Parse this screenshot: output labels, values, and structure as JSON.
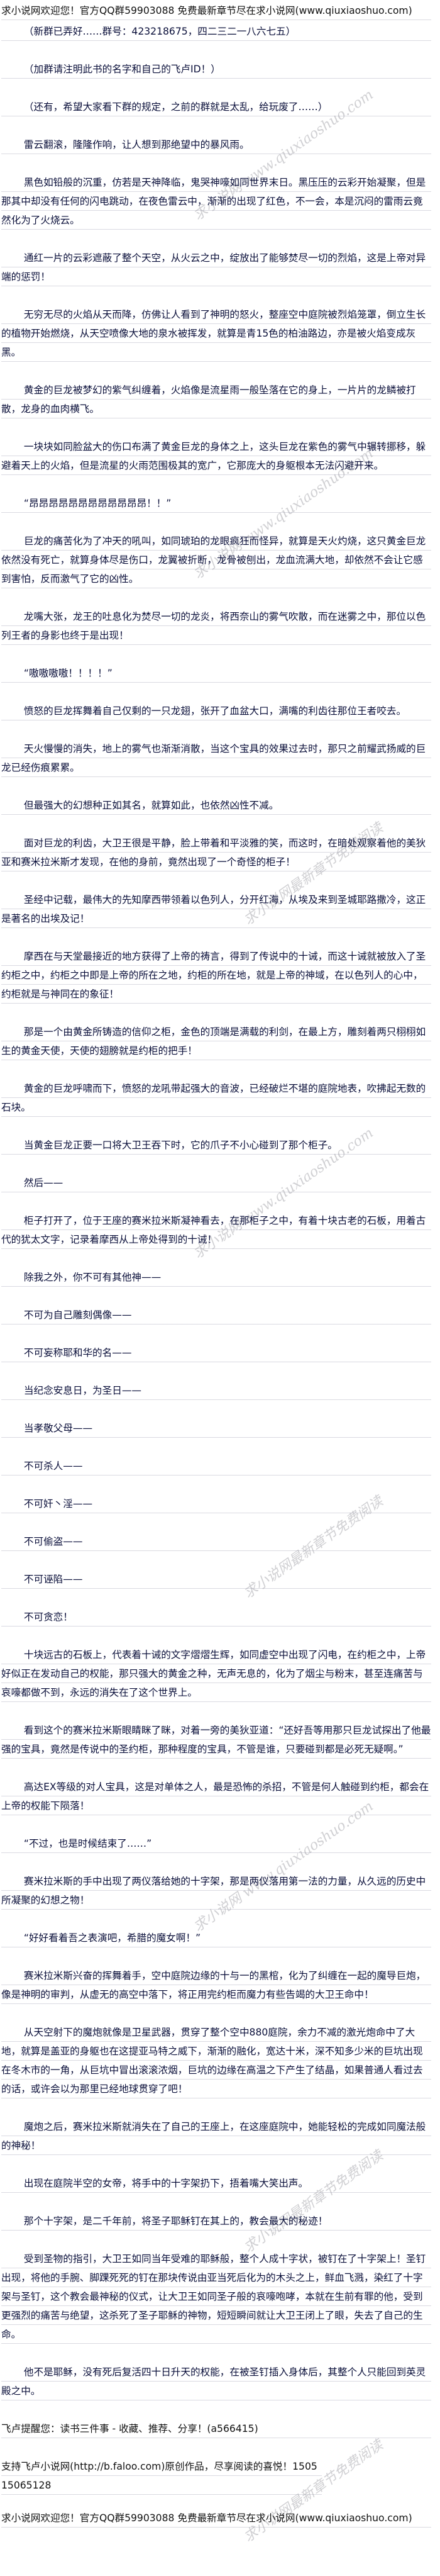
{
  "header": "求小说网欢迎您！官方QQ群59903088 免费最新章节尽在求小说网(www.qiuxiaoshuo.com)",
  "watermarks": {
    "site": "求小说网 www.qiuxiaoshuo.com",
    "slogan": "求小说网最新章节免费阅读"
  },
  "paragraphs": [
    "（新群已弄好……群号：423218675，四二三二一八六七五）",
    "（加群请注明此书的名字和自己的飞卢ID！）",
    "（还有，希望大家看下群的规定，之前的群就是太乱，给玩废了……）",
    "雷云翻滚，隆隆作响，让人想到那绝望中的暴风雨。",
    "黑色如铅般的沉重，仿若是天神降临，鬼哭神嚎如同世界末日。黑压压的云彩开始凝聚，但是那其中却没有任何的闪电跳动，在夜色雷云中，渐渐的出现了红色，不一会，本是沉闷的雷雨云竟然化为了火烧云。",
    "通红一片的云彩遮蔽了整个天空，从火云之中，绽放出了能够焚尽一切的烈焰，这是上帝对异端的惩罚！",
    "无穷无尽的火焰从天而降，仿佛让人看到了神明的怒火，整座空中庭院被烈焰笼罩，倒立生长的植物开始燃烧，从天空喷像大地的泉水被挥发，就算是青15色的柏油路边，亦是被火焰变成灰黑。",
    "黄金的巨龙被梦幻的紫气纠缠着，火焰像是流星雨一般坠落在它的身上，一片片的龙鳞被打散，龙身的血肉横飞。",
    "一块块如同脸盆大的伤口布满了黄金巨龙的身体之上，这头巨龙在紫色的雾气中辗转挪移，躲避着天上的火焰，但是流星的火雨范围极其的宽广，它那庞大的身躯根本无法闪避开来。",
    "“昂昂昂昂昂昂昂昂昂昂昂昂！！”",
    "巨龙的痛苦化为了冲天的吼叫，如同琥珀的龙眼疯狂而怪异，就算是天火灼烧，这只黄金巨龙依然没有死亡，就算身体尽是伤口，龙翼被折断，龙骨被刨出，龙血流满大地，却依然不会让它感到害怕，反而激气了它的凶性。",
    "龙嘴大张，龙王的吐息化为焚尽一切的龙炎，将西奈山的雾气吹散，而在迷雾之中，那位以色列王者的身影也终于是出现！",
    "“嗷嗷嗷嗷！！！！”",
    "愤怒的巨龙挥舞着自己仅剩的一只龙翅，张开了血盆大口，满嘴的利齿往那位王者咬去。",
    "天火慢慢的消失，地上的雾气也渐渐消散，当这个宝具的效果过去时，那只之前耀武扬威的巨龙已经伤痕累累。",
    "但最强大的幻想种正如其名，就算如此，也依然凶性不减。",
    "面对巨龙的利齿，大卫王很是平静，脸上带着和平淡雅的笑，而这时，在暗处观察着他的美狄亚和赛米拉米斯才发现，在他的身前，竟然出现了一个奇怪的柜子！",
    "圣经中记载，最伟大的先知摩西带领着以色列人，分开红海，从埃及来到圣城耶路撒冷，这正是著名的出埃及记！",
    "摩西在与天堂最接近的地方获得了上帝的祷言，得到了传说中的十诫，而这十诫就被放入了圣约柜之中，约柜之中即是上帝的所在之地，约柜的所在地，就是上帝的神域，在以色列人的心中，约柜就是与神同在的象征！",
    "那是一个由黄金所铸造的信仰之柜，金色的顶端是满载的利剑，在最上方，雕刻着两只栩栩如生的黄金天使，天使的翅膀就是约柜的把手！",
    "黄金的巨龙呼啸而下，愤怒的龙吼带起强大的音波，已经破烂不堪的庭院地表，吹拂起无数的石块。",
    "当黄金巨龙正要一口将大卫王吞下时，它的爪子不小心碰到了那个柜子。",
    "然后——",
    "柜子打开了，位于王座的赛米拉米斯凝神看去，在那柜子之中，有着十块古老的石板，用着古代的犹太文字，记录着摩西从上帝处得到的十诫！",
    "除我之外，你不可有其他神——",
    "不可为自己雕刻偶像——",
    "不可妄称耶和华的名——",
    "当纪念安息日，为圣日——",
    "当孝敬父母——",
    "不可杀人——",
    "不可奸丶淫——",
    "不可偷盗——",
    "不可诬陷——",
    "不可贪恋！",
    "十块远古的石板上，代表着十诫的文字熠熠生辉，如同虚空中出现了闪电，在约柜之中，上帝好似正在发动自己的权能，那只强大的黄金之种，无声无息的，化为了烟尘与粉末，甚至连痛苦与哀嚎都做不到，永远的消失在了这个世界上。",
    "看到这个的赛米拉米斯眼睛眯了眯，对着一旁的美狄亚道：“还好吾等用那只巨龙试探出了他最强的宝具，竟然是传说中的圣约柜，那种程度的宝具，不管是谁，只要碰到都是必死无疑啊。”",
    "高达EX等级的对人宝具，这是对单体之人，最是恐怖的杀招，不管是何人触碰到约柜，都会在上帝的权能下陨落！",
    "“不过，也是时候结束了……”",
    "赛米拉米斯的手中出现了两仪落给她的十字架，那是两仪落用第一法的力量，从久远的历史中所凝聚的幻想之物！",
    "“好好看着吾之表演吧，希腊的魔女啊！”",
    "赛米拉米斯兴奋的挥舞着手，空中庭院边缘的十与一的黑棺，化为了纠缠在一起的魔导巨炮，像是神明的审判，从虚无的高空中落下，将正用完约柜而魔力有些告竭的大卫王命中！",
    "从天空射下的魔炮就像是卫星武器，贯穿了整个空中880庭院，余力不减的激光炮命中了大地，就算是盖亚的身躯也在这提亚马特之威下，渐渐的融化，宽达十米，深不知多少米的巨坑出现在冬木市的一角，从巨坑中冒出滚滚浓烟，巨坑的边缘在高温之下产生了结晶，如果普通人看过去的话，或许会以为那里已经地球贯穿了吧！",
    "魔炮之后，赛米拉米斯就消失在了自己的王座上，在这座庭院中，她能轻松的完成如同魔法般的神秘！",
    "出现在庭院半空的女帝，将手中的十字架扔下，捂着嘴大笑出声。",
    "那个十字架，是二千年前，将圣子耶稣钉在其上的，教会最大的秘迹！",
    "受到圣物的指引，大卫王如同当年受难的耶稣般，整个人成十字状，被钉在了十字架上！圣钉出现，将他的手腕、脚踝死死的钉在那块传说由亚当死后化为的木头之上，鲜血飞溅，染红了十字架与圣钉，这个教会最神秘的仪式，让大卫王如同圣子般的哀嚎咆哮，本就在生前有罪的他，受到更强烈的痛苦与绝望，这杀死了圣子耶稣的神物，短短瞬间就让大卫王闭上了眼，失去了自己的生命。",
    "他不是耶稣，没有死后复活四十日升天的权能，在被圣钉插入身体后，其整个人只能回到英灵殿之中。"
  ],
  "faloo_reminder": "飞卢提醒您：读书三件事 - 收藏、推荐、分享！(a566415)",
  "faloo_support": "支持飞卢小说网(http://b.faloo.com)原创作品，尽享阅读的喜悦！150515065128",
  "footer": "求小说网欢迎您！官方QQ群59903088 免费最新章节尽在求小说网(www.qiuxiaoshuo.com)"
}
